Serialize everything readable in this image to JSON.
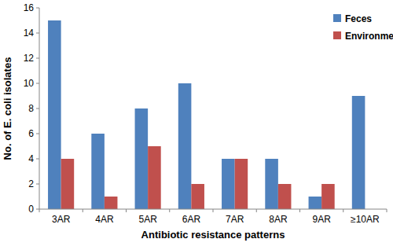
{
  "chart_data": {
    "type": "bar",
    "categories": [
      "3AR",
      "4AR",
      "5AR",
      "6AR",
      "7AR",
      "8AR",
      "9AR",
      "≥10AR"
    ],
    "series": [
      {
        "name": "Feces",
        "color": "#4f81bd",
        "values": [
          15,
          6,
          8,
          10,
          4,
          4,
          1,
          9
        ]
      },
      {
        "name": "Environment",
        "color": "#c0504d",
        "values": [
          4,
          1,
          5,
          2,
          4,
          2,
          2,
          0
        ]
      }
    ],
    "x_label": "Antibiotic resistance patterns",
    "y_label": "No. of E. coli isolates",
    "ylim": [
      0,
      16
    ],
    "yticks": [
      0,
      2,
      4,
      6,
      8,
      10,
      12,
      14,
      16
    ],
    "grid": false,
    "legend": "upper-right"
  }
}
